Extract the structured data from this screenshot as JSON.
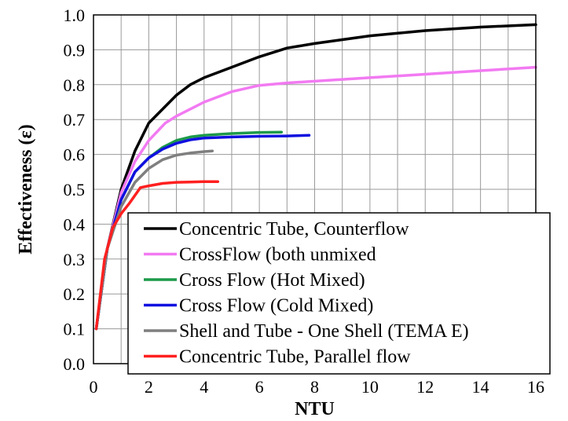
{
  "chart_data": {
    "type": "line",
    "title": "",
    "xlabel": "NTU",
    "ylabel": "Effectiveness (ε)",
    "xlim": [
      0,
      16
    ],
    "ylim": [
      0,
      1.0
    ],
    "x_ticks": [
      "0",
      "2",
      "4",
      "6",
      "8",
      "10",
      "12",
      "14",
      "16"
    ],
    "y_ticks": [
      "0.0",
      "0.1",
      "0.2",
      "0.3",
      "0.4",
      "0.5",
      "0.6",
      "0.7",
      "0.8",
      "0.9",
      "1.0"
    ],
    "grid": true,
    "legend_position": "bottom-right",
    "series": [
      {
        "name": "Concentric Tube, Counterflow",
        "color": "#000000",
        "x": [
          0.1,
          0.5,
          1.0,
          1.5,
          2.0,
          2.5,
          3.0,
          3.5,
          4.0,
          5.0,
          6.0,
          7.0,
          8.0,
          10.0,
          12.0,
          14.0,
          16.0
        ],
        "y": [
          0.1,
          0.33,
          0.5,
          0.61,
          0.69,
          0.73,
          0.77,
          0.8,
          0.82,
          0.85,
          0.88,
          0.905,
          0.918,
          0.94,
          0.955,
          0.965,
          0.972
        ]
      },
      {
        "name": "CrossFlow (both unmixed",
        "color": "#f27af2",
        "x": [
          0.1,
          0.5,
          1.0,
          1.5,
          2.0,
          2.6,
          3.0,
          4.0,
          5.0,
          6.0,
          7.0,
          8.0,
          10.0,
          12.0,
          14.0,
          16.0
        ],
        "y": [
          0.1,
          0.33,
          0.49,
          0.58,
          0.64,
          0.69,
          0.71,
          0.75,
          0.78,
          0.798,
          0.805,
          0.81,
          0.82,
          0.83,
          0.84,
          0.85
        ]
      },
      {
        "name": "Cross Flow (Hot Mixed)",
        "color": "#1d9a4a",
        "x": [
          0.1,
          0.5,
          1.0,
          1.5,
          2.0,
          2.5,
          3.0,
          3.5,
          4.0,
          5.0,
          6.0,
          6.8
        ],
        "y": [
          0.1,
          0.33,
          0.47,
          0.55,
          0.59,
          0.62,
          0.64,
          0.65,
          0.655,
          0.66,
          0.663,
          0.664
        ]
      },
      {
        "name": "Cross Flow (Cold Mixed)",
        "color": "#1010e0",
        "x": [
          0.1,
          0.5,
          1.0,
          1.5,
          2.0,
          2.5,
          3.0,
          3.5,
          4.0,
          5.0,
          6.0,
          7.0,
          7.8
        ],
        "y": [
          0.1,
          0.33,
          0.47,
          0.55,
          0.59,
          0.615,
          0.632,
          0.642,
          0.647,
          0.65,
          0.652,
          0.653,
          0.655
        ]
      },
      {
        "name": "Shell and Tube - One Shell (TEMA E)",
        "color": "#7f7f7f",
        "x": [
          0.1,
          0.5,
          1.0,
          1.5,
          2.0,
          2.5,
          3.0,
          3.5,
          4.0,
          4.3
        ],
        "y": [
          0.1,
          0.33,
          0.45,
          0.52,
          0.56,
          0.585,
          0.598,
          0.604,
          0.608,
          0.61
        ]
      },
      {
        "name": "Concentric Tube, Parallel flow",
        "color": "#ff2020",
        "x": [
          0.1,
          0.4,
          0.7,
          1.0,
          1.3,
          1.7,
          2.0,
          2.5,
          3.0,
          3.5,
          4.0,
          4.5
        ],
        "y": [
          0.1,
          0.3,
          0.39,
          0.43,
          0.46,
          0.505,
          0.51,
          0.517,
          0.52,
          0.521,
          0.522,
          0.522
        ]
      }
    ]
  }
}
